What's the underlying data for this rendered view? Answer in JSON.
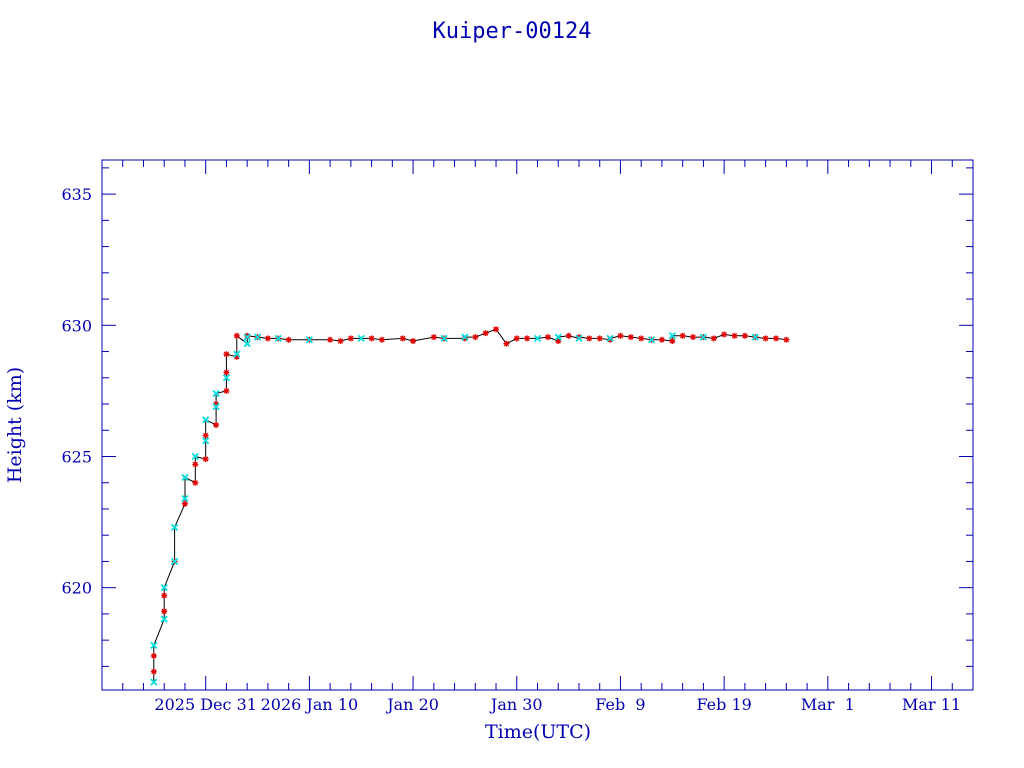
{
  "chart_data": {
    "type": "scatter",
    "title": "Kuiper-00124",
    "xlabel": "Time(UTC)",
    "ylabel": "Height (km)",
    "x_tick_labels": [
      "2025 Dec 31",
      "2026 Jan 10",
      "Jan 20",
      "Jan 30",
      "Feb  9",
      "Feb 19",
      "Mar  1",
      "Mar 11"
    ],
    "x_tick_dates": [
      "2025-12-31",
      "2026-01-10",
      "2026-01-20",
      "2026-01-30",
      "2026-02-09",
      "2026-02-19",
      "2026-03-01",
      "2026-03-11"
    ],
    "xlim": [
      "2025-12-21",
      "2026-03-15"
    ],
    "y_ticks": [
      620,
      625,
      630,
      635
    ],
    "ylim": [
      616.1,
      636.3
    ],
    "grid": false,
    "colors": {
      "frame": "#0000b0",
      "line": "#000000",
      "marker_red": "#e00000",
      "marker_cyan": "#00e0e0"
    },
    "series": [
      {
        "marker": "red-star",
        "points": [
          [
            "2025-12-26",
            616.8
          ],
          [
            "2025-12-26",
            617.4
          ],
          [
            "2025-12-27",
            619.1
          ],
          [
            "2025-12-27",
            619.7
          ],
          [
            "2025-12-28",
            621.0
          ],
          [
            "2025-12-29",
            623.2
          ],
          [
            "2025-12-30",
            624.0
          ],
          [
            "2025-12-30",
            624.7
          ],
          [
            "2025-12-31",
            624.9
          ],
          [
            "2025-12-31",
            625.8
          ],
          [
            "2026-01-01",
            626.2
          ],
          [
            "2026-01-01",
            627.0
          ],
          [
            "2026-01-02",
            627.5
          ],
          [
            "2026-01-02",
            628.2
          ],
          [
            "2026-01-02",
            628.9
          ],
          [
            "2026-01-03",
            628.8
          ],
          [
            "2026-01-03",
            629.6
          ],
          [
            "2026-01-04",
            629.6
          ],
          [
            "2026-01-05",
            629.55
          ],
          [
            "2026-01-06",
            629.5
          ],
          [
            "2026-01-07",
            629.5
          ],
          [
            "2026-01-08",
            629.45
          ],
          [
            "2026-01-10",
            629.45
          ],
          [
            "2026-01-12",
            629.45
          ],
          [
            "2026-01-13",
            629.4
          ],
          [
            "2026-01-14",
            629.5
          ],
          [
            "2026-01-16",
            629.5
          ],
          [
            "2026-01-17",
            629.45
          ],
          [
            "2026-01-19",
            629.5
          ],
          [
            "2026-01-20",
            629.4
          ],
          [
            "2026-01-22",
            629.55
          ],
          [
            "2026-01-23",
            629.5
          ],
          [
            "2026-01-25",
            629.5
          ],
          [
            "2026-01-26",
            629.55
          ],
          [
            "2026-01-27",
            629.7
          ],
          [
            "2026-01-28",
            629.85
          ],
          [
            "2026-01-29",
            629.3
          ],
          [
            "2026-01-30",
            629.5
          ],
          [
            "2026-01-31",
            629.5
          ],
          [
            "2026-02-02",
            629.55
          ],
          [
            "2026-02-03",
            629.4
          ],
          [
            "2026-02-04",
            629.6
          ],
          [
            "2026-02-05",
            629.55
          ],
          [
            "2026-02-06",
            629.5
          ],
          [
            "2026-02-07",
            629.5
          ],
          [
            "2026-02-08",
            629.45
          ],
          [
            "2026-02-09",
            629.6
          ],
          [
            "2026-02-10",
            629.55
          ],
          [
            "2026-02-11",
            629.5
          ],
          [
            "2026-02-12",
            629.45
          ],
          [
            "2026-02-13",
            629.45
          ],
          [
            "2026-02-14",
            629.4
          ],
          [
            "2026-02-15",
            629.6
          ],
          [
            "2026-02-16",
            629.55
          ],
          [
            "2026-02-17",
            629.55
          ],
          [
            "2026-02-18",
            629.5
          ],
          [
            "2026-02-19",
            629.65
          ],
          [
            "2026-02-20",
            629.6
          ],
          [
            "2026-02-21",
            629.6
          ],
          [
            "2026-02-22",
            629.55
          ],
          [
            "2026-02-23",
            629.5
          ],
          [
            "2026-02-24",
            629.5
          ],
          [
            "2026-02-25",
            629.45
          ]
        ]
      },
      {
        "marker": "cyan-cross",
        "points": [
          [
            "2025-12-26",
            616.4
          ],
          [
            "2025-12-26",
            617.8
          ],
          [
            "2025-12-27",
            618.8
          ],
          [
            "2025-12-27",
            620.0
          ],
          [
            "2025-12-28",
            621.0
          ],
          [
            "2025-12-28",
            622.3
          ],
          [
            "2025-12-29",
            623.4
          ],
          [
            "2025-12-29",
            624.2
          ],
          [
            "2025-12-30",
            625.0
          ],
          [
            "2025-12-31",
            625.6
          ],
          [
            "2025-12-31",
            626.4
          ],
          [
            "2026-01-01",
            626.9
          ],
          [
            "2026-01-01",
            627.4
          ],
          [
            "2026-01-02",
            628.0
          ],
          [
            "2026-01-03",
            628.9
          ],
          [
            "2026-01-04",
            629.3
          ],
          [
            "2026-01-04",
            629.55
          ],
          [
            "2026-01-05",
            629.55
          ],
          [
            "2026-01-07",
            629.5
          ],
          [
            "2026-01-10",
            629.45
          ],
          [
            "2026-01-15",
            629.5
          ],
          [
            "2026-01-23",
            629.5
          ],
          [
            "2026-01-25",
            629.55
          ],
          [
            "2026-02-01",
            629.5
          ],
          [
            "2026-02-03",
            629.55
          ],
          [
            "2026-02-05",
            629.5
          ],
          [
            "2026-02-08",
            629.5
          ],
          [
            "2026-02-12",
            629.45
          ],
          [
            "2026-02-14",
            629.6
          ],
          [
            "2026-02-17",
            629.55
          ],
          [
            "2026-02-22",
            629.55
          ]
        ]
      }
    ]
  }
}
